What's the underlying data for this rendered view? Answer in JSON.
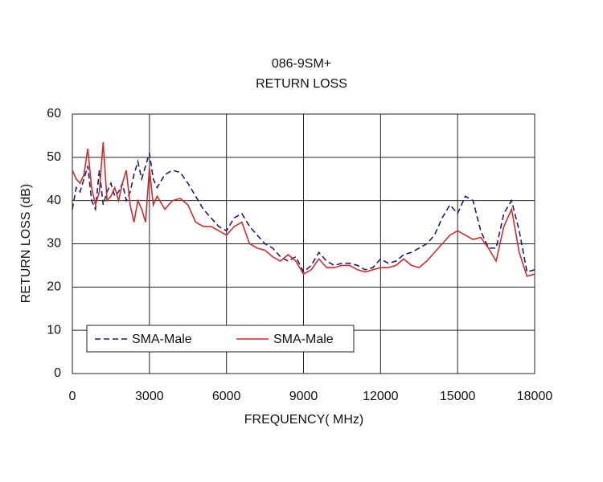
{
  "chart_data": {
    "type": "line",
    "title": "086-9SM+",
    "subtitle": "RETURN LOSS",
    "x_label": "FREQUENCY( MHz)",
    "y_label": "RETURN LOSS (dB)",
    "x": [
      0,
      150,
      300,
      450,
      600,
      750,
      900,
      1050,
      1200,
      1350,
      1500,
      1650,
      1800,
      1950,
      2100,
      2250,
      2400,
      2550,
      2700,
      2850,
      3000,
      3150,
      3300,
      3600,
      3900,
      4200,
      4500,
      4800,
      5100,
      5400,
      5700,
      6000,
      6300,
      6600,
      6900,
      7200,
      7500,
      7800,
      8100,
      8400,
      8700,
      9000,
      9300,
      9600,
      9900,
      10200,
      10500,
      10800,
      11100,
      11400,
      11700,
      12000,
      12300,
      12600,
      12900,
      13200,
      13500,
      13800,
      14100,
      14400,
      14700,
      15000,
      15300,
      15600,
      15900,
      16200,
      16500,
      16800,
      17100,
      17400,
      17700,
      18000
    ],
    "series": [
      {
        "name": "SMA-Male",
        "color": "#1a1f6e",
        "line_style": "dashed",
        "values": [
          38,
          43,
          42,
          45,
          48,
          40,
          38,
          47,
          39,
          42,
          44,
          41,
          42,
          44,
          40,
          42,
          46,
          49,
          45,
          48,
          51,
          45,
          43,
          46,
          47,
          46.5,
          44,
          41,
          38,
          36,
          34,
          33,
          36,
          37,
          34,
          32,
          30,
          29,
          27,
          26,
          27,
          23.5,
          25,
          28,
          26,
          25,
          25.5,
          25.5,
          25,
          24,
          24.5,
          26.5,
          25.5,
          26,
          27.5,
          28,
          29,
          30,
          32,
          36,
          39,
          37,
          41,
          40,
          33,
          29,
          29,
          37,
          40,
          33,
          23.5,
          24
        ]
      },
      {
        "name": "SMA-Male",
        "color": "#d62a2a",
        "line_style": "solid",
        "values": [
          47,
          45,
          44,
          46,
          52,
          43,
          39,
          42,
          53.5,
          40,
          41,
          43,
          40,
          44,
          47,
          39,
          35,
          40,
          38,
          35,
          47.5,
          39,
          41,
          38,
          40,
          40.5,
          39,
          35,
          34,
          34,
          33,
          32,
          34,
          35,
          30,
          29,
          28.5,
          27,
          26,
          27.5,
          26,
          23,
          24,
          26.5,
          24.5,
          24.5,
          25,
          25,
          24,
          23.5,
          24,
          24.5,
          24.5,
          25,
          26.5,
          25,
          24.5,
          26,
          28,
          30,
          32,
          33,
          32,
          31,
          31.5,
          29,
          26,
          34,
          38,
          28,
          22.5,
          23
        ]
      }
    ],
    "xlim": [
      0,
      18000
    ],
    "xticks": [
      0,
      3000,
      6000,
      9000,
      12000,
      15000,
      18000
    ],
    "ylim": [
      0,
      60
    ],
    "yticks": [
      0,
      10,
      20,
      30,
      40,
      50,
      60
    ],
    "grid": true,
    "legend": "lower left"
  }
}
